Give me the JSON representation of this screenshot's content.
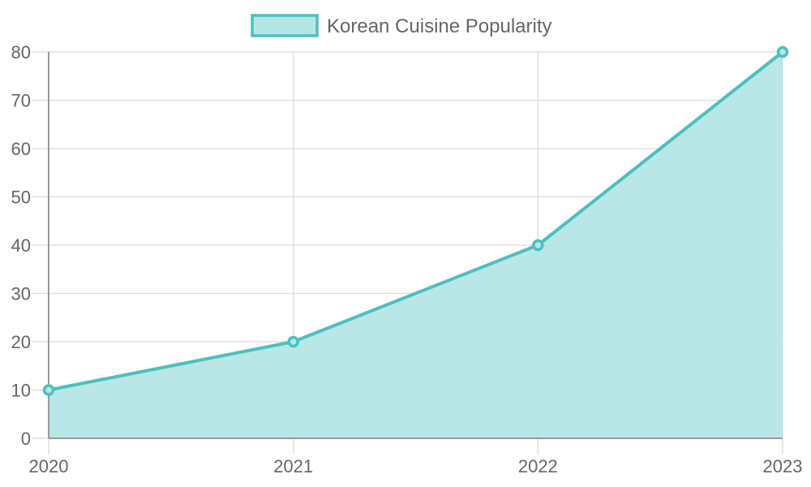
{
  "chart_data": {
    "type": "area",
    "categories": [
      "2020",
      "2021",
      "2022",
      "2023"
    ],
    "series": [
      {
        "name": "Korean Cuisine Popularity",
        "values": [
          10,
          20,
          40,
          80
        ]
      }
    ],
    "y_ticks": [
      "0",
      "10",
      "20",
      "30",
      "40",
      "50",
      "60",
      "70",
      "80"
    ],
    "ylim": [
      0,
      80
    ],
    "grid": true,
    "legend_position": "top-center",
    "colors": {
      "line": "#4bc0c0",
      "fill": "#b5e6e6",
      "grid": "#e0e0e0",
      "axis": "#999999",
      "text": "#666666"
    }
  }
}
